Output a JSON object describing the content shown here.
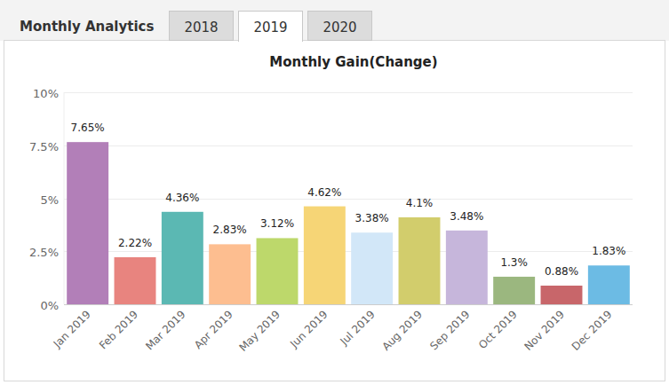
{
  "header": {
    "title": "Monthly Analytics",
    "tabs": [
      "2018",
      "2019",
      "2020"
    ],
    "selected_tab": "2019"
  },
  "chart_data": {
    "type": "bar",
    "title": "Monthly Gain(Change)",
    "categories": [
      "Jan 2019",
      "Feb 2019",
      "Mar 2019",
      "Apr 2019",
      "May 2019",
      "Jun 2019",
      "Jul 2019",
      "Aug 2019",
      "Sep 2019",
      "Oct 2019",
      "Nov 2019",
      "Dec 2019"
    ],
    "values": [
      7.65,
      2.22,
      4.36,
      2.83,
      3.12,
      4.62,
      3.38,
      4.1,
      3.48,
      1.3,
      0.88,
      1.83
    ],
    "value_labels": [
      "7.65%",
      "2.22%",
      "4.36%",
      "2.83%",
      "3.12%",
      "4.62%",
      "3.38%",
      "4.1%",
      "3.48%",
      "1.3%",
      "0.88%",
      "1.83%"
    ],
    "colors": [
      "#b27fb8",
      "#e8847f",
      "#5bb8b3",
      "#fdbe90",
      "#bdd86b",
      "#f6d576",
      "#d2e7f8",
      "#d2cd6c",
      "#c6b6db",
      "#9bb77f",
      "#c8666a",
      "#6cbbe4"
    ],
    "ylim": [
      0,
      10
    ],
    "yticks": [
      {
        "value": 0,
        "label": "0%"
      },
      {
        "value": 2.5,
        "label": "2.5%"
      },
      {
        "value": 5,
        "label": "5%"
      },
      {
        "value": 7.5,
        "label": "7.5%"
      },
      {
        "value": 10,
        "label": "10%"
      }
    ],
    "grid": true,
    "data_labels": true
  }
}
